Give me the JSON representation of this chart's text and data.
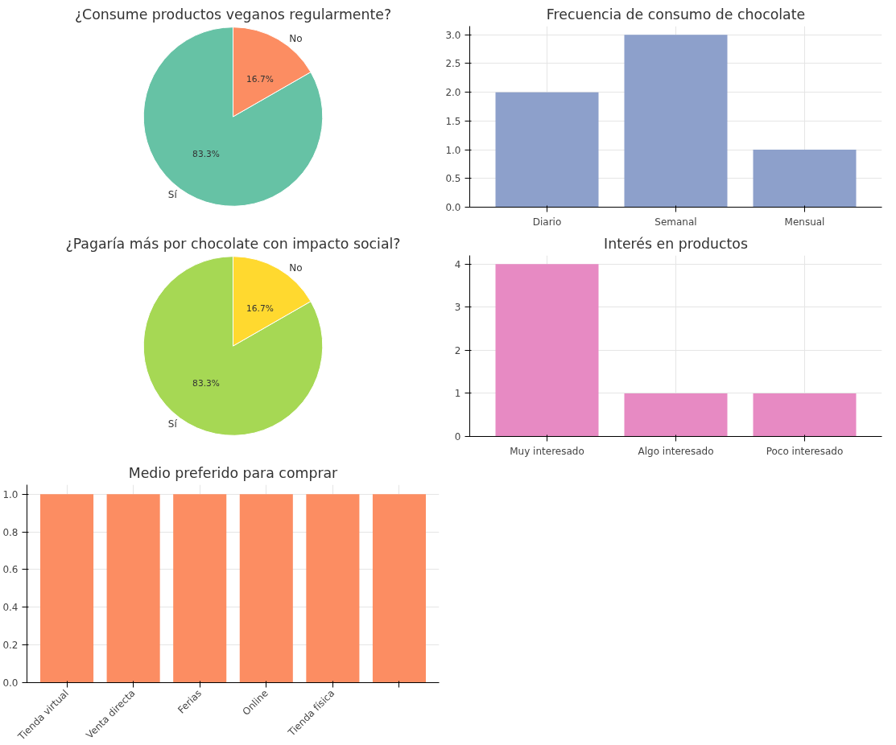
{
  "chart_data": [
    {
      "type": "pie",
      "title": "¿Consume productos veganos regularmente?",
      "categories": [
        "Sí",
        "No"
      ],
      "values": [
        83.3,
        16.7
      ],
      "colors": [
        "#66c2a5",
        "#fc8d62"
      ],
      "value_labels": [
        "83.3%",
        "16.7%"
      ]
    },
    {
      "type": "bar",
      "title": "Frecuencia de consumo de chocolate",
      "categories": [
        "Diario",
        "Semanal",
        "Mensual"
      ],
      "values": [
        2,
        3,
        1
      ],
      "color": "#8da0cb",
      "ylim": [
        0,
        3.15
      ],
      "yticks": [
        {
          "value": 0,
          "label": "0.0"
        },
        {
          "value": 0.5,
          "label": "0.5"
        },
        {
          "value": 1,
          "label": "1.0"
        },
        {
          "value": 1.5,
          "label": "1.5"
        },
        {
          "value": 2,
          "label": "2.0"
        },
        {
          "value": 2.5,
          "label": "2.5"
        },
        {
          "value": 3,
          "label": "3.0"
        }
      ],
      "grid": true
    },
    {
      "type": "pie",
      "title": "¿Pagaría más por chocolate con impacto social?",
      "categories": [
        "Sí",
        "No"
      ],
      "values": [
        83.3,
        16.7
      ],
      "colors": [
        "#a6d854",
        "#ffd92f"
      ],
      "value_labels": [
        "83.3%",
        "16.7%"
      ]
    },
    {
      "type": "bar",
      "title": "Interés en productos",
      "categories": [
        "Muy interesado",
        "Algo interesado",
        "Poco interesado"
      ],
      "values": [
        4,
        1,
        1
      ],
      "color": "#e78ac3",
      "ylim": [
        0,
        4.2
      ],
      "yticks": [
        0,
        1,
        2,
        3,
        4
      ],
      "grid": true
    },
    {
      "type": "bar",
      "title": "Medio preferido para comprar",
      "categories": [
        "Tienda virtual",
        "Venta directa",
        "Ferias",
        "Online",
        "Tienda física",
        null
      ],
      "values": [
        1,
        1,
        1,
        1,
        1,
        1
      ],
      "color": "#fc8d62",
      "ylim": [
        0,
        1.05
      ],
      "yticks": [
        {
          "value": 0,
          "label": "0.0"
        },
        {
          "value": 0.2,
          "label": "0.2"
        },
        {
          "value": 0.4,
          "label": "0.4"
        },
        {
          "value": 0.6,
          "label": "0.6"
        },
        {
          "value": 0.8,
          "label": "0.8"
        },
        {
          "value": 1,
          "label": "1.0"
        }
      ],
      "grid": true
    }
  ]
}
